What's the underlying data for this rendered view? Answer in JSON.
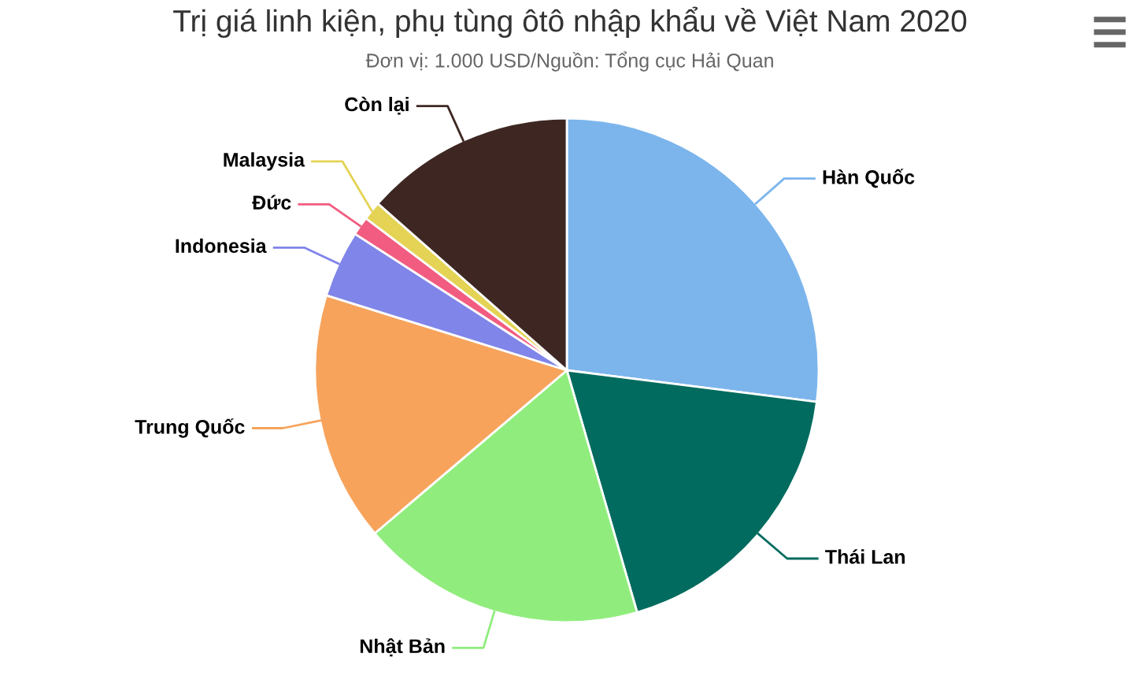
{
  "chart_data": {
    "type": "pie",
    "title": "Trị giá linh kiện, phụ tùng ôtô nhập khẩu về Việt Nam 2020",
    "subtitle": "Đơn vị: 1.000 USD/Nguồn: Tổng cục Hải Quan",
    "categories": [
      "Hàn Quốc",
      "Thái Lan",
      "Nhật Bản",
      "Trung Quốc",
      "Indonesia",
      "Đức",
      "Malaysia",
      "Còn lại"
    ],
    "values": [
      27.0,
      18.5,
      18.3,
      16.0,
      4.3,
      1.2,
      1.2,
      13.5
    ],
    "colors": [
      "#7cb5ec",
      "#006b5e",
      "#90ed7d",
      "#f7a35c",
      "#8085e9",
      "#f15c80",
      "#e4d354",
      "#3e2723"
    ],
    "legend": false
  }
}
